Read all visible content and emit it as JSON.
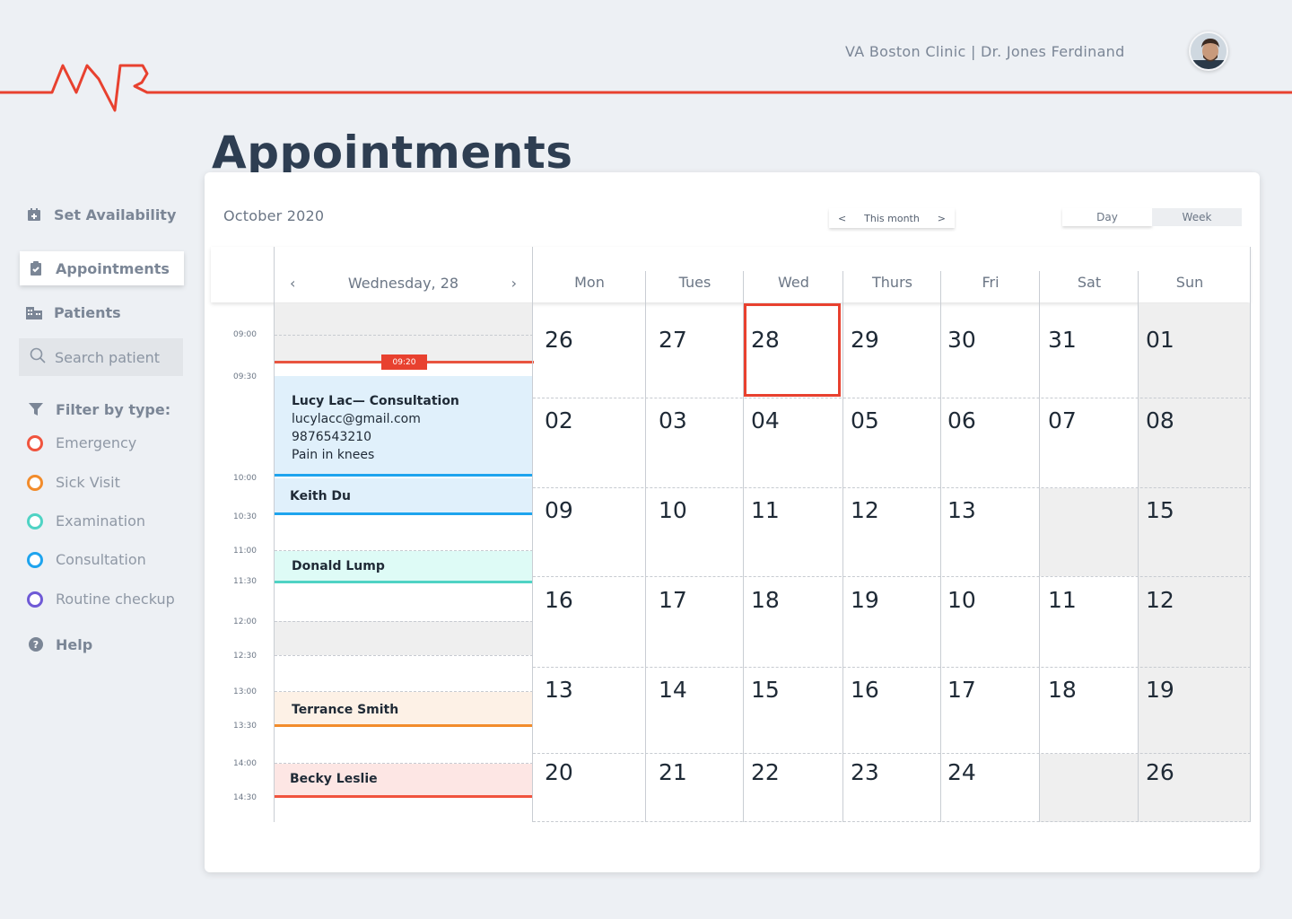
{
  "header": {
    "clinic_text": "VA Boston Clinic | Dr. Jones Ferdinand"
  },
  "page_title": "Appointments",
  "sidebar": {
    "set_availability": "Set Availability",
    "appointments": "Appointments",
    "patients": "Patients",
    "search_placeholder": "Search patient",
    "filter_title": "Filter by type:",
    "filters": [
      {
        "label": "Emergency",
        "color": "#f0543e"
      },
      {
        "label": "Sick Visit",
        "color": "#f28c2b"
      },
      {
        "label": "Examination",
        "color": "#4fd3c4"
      },
      {
        "label": "Consultation",
        "color": "#1ea4ee"
      },
      {
        "label": "Routine checkup",
        "color": "#6f5ad6"
      }
    ],
    "help": "Help"
  },
  "calendar": {
    "month_label": "October 2020",
    "nav": {
      "prev": "<",
      "label": "This month",
      "next": ">"
    },
    "views": {
      "day": "Day",
      "week": "Week"
    },
    "day_view": {
      "prev": "‹",
      "title": "Wednesday, 28",
      "next": "›",
      "times": [
        "09:00",
        "09:30",
        "10:00",
        "10:30",
        "11:00",
        "11:30",
        "12:00",
        "12:30",
        "13:00",
        "13:30",
        "14:00",
        "14:30"
      ],
      "now": "09:20",
      "appointments": [
        {
          "name": "Lucy Lac— Consultation",
          "email": "lucylacc@gmail.com",
          "phone": "9876543210",
          "note": "Pain in knees",
          "type": "Consultation"
        },
        {
          "name": "Keith Du",
          "type": "Consultation"
        },
        {
          "name": "Donald Lump",
          "type": "Examination"
        },
        {
          "name": "Terrance Smith",
          "type": "Sick Visit"
        },
        {
          "name": "Becky Leslie",
          "type": "Emergency"
        }
      ]
    },
    "weekdays": [
      "Mon",
      "Tues",
      "Wed",
      "Thurs",
      "Fri",
      "Sat",
      "Sun"
    ],
    "weeks": [
      [
        "26",
        "27",
        "28",
        "29",
        "30",
        "31",
        "01"
      ],
      [
        "02",
        "03",
        "04",
        "05",
        "06",
        "07",
        "08"
      ],
      [
        "09",
        "10",
        "11",
        "12",
        "13",
        "",
        "15"
      ],
      [
        "16",
        "17",
        "18",
        "19",
        "10",
        "11",
        "12"
      ],
      [
        "13",
        "14",
        "15",
        "16",
        "17",
        "18",
        "19"
      ],
      [
        "20",
        "21",
        "22",
        "23",
        "24",
        "",
        "26"
      ]
    ],
    "today": "28"
  },
  "colors": {
    "accent": "#e8412f",
    "title": "#2e3e52"
  }
}
